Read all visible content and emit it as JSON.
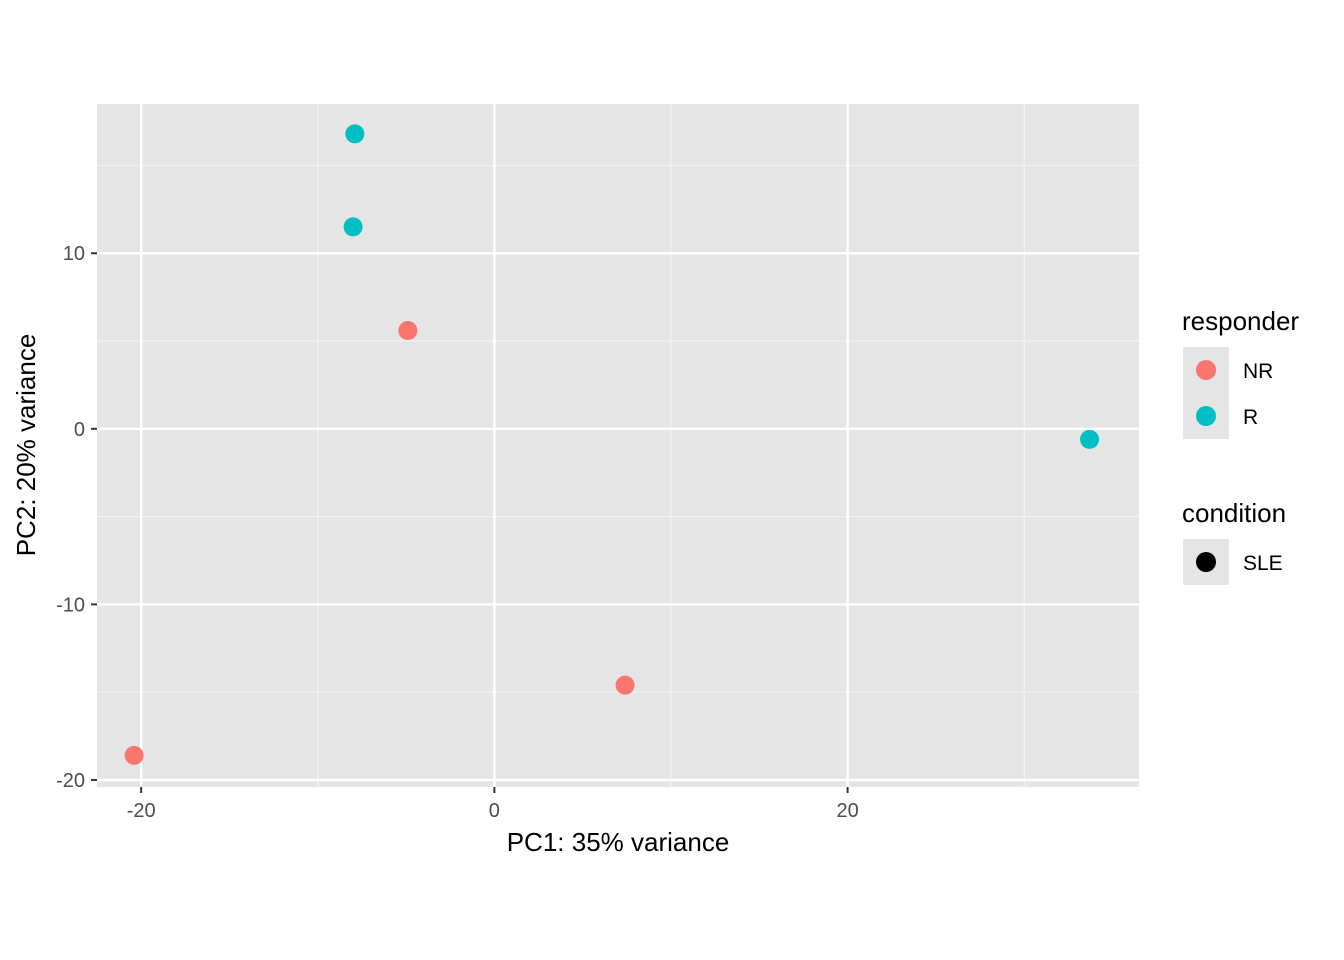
{
  "chart_data": {
    "type": "scatter",
    "xlabel": "PC1: 35% variance",
    "ylabel": "PC2: 20% variance",
    "xlim": [
      -22.5,
      36.5
    ],
    "ylim": [
      -20.4,
      18.5
    ],
    "x_ticks": [
      -20,
      0,
      20
    ],
    "x_tick_labels": [
      "-20",
      "0",
      "20"
    ],
    "y_ticks": [
      -20,
      -10,
      0,
      10
    ],
    "y_tick_labels": [
      "-20",
      "-10",
      "0",
      "10"
    ],
    "x_minor_ticks": [
      -10,
      10,
      30
    ],
    "y_minor_ticks": [
      -15,
      -5,
      5,
      15
    ],
    "grid": true,
    "background": "#e5e5e5",
    "series": [
      {
        "name": "NR",
        "color": "#F8766D",
        "points": [
          [
            -20.4,
            -18.6
          ],
          [
            -4.9,
            5.6
          ],
          [
            7.4,
            -14.6
          ]
        ]
      },
      {
        "name": "R",
        "color": "#00BFC4",
        "points": [
          [
            -7.9,
            16.8
          ],
          [
            -8.0,
            11.5
          ],
          [
            33.7,
            -0.6
          ]
        ]
      }
    ],
    "legend": {
      "position": "right",
      "groups": [
        {
          "title": "responder",
          "items": [
            {
              "label": "NR",
              "color": "#F8766D"
            },
            {
              "label": "R",
              "color": "#00BFC4"
            }
          ]
        },
        {
          "title": "condition",
          "items": [
            {
              "label": "SLE",
              "color": "#000000"
            }
          ]
        }
      ]
    }
  }
}
